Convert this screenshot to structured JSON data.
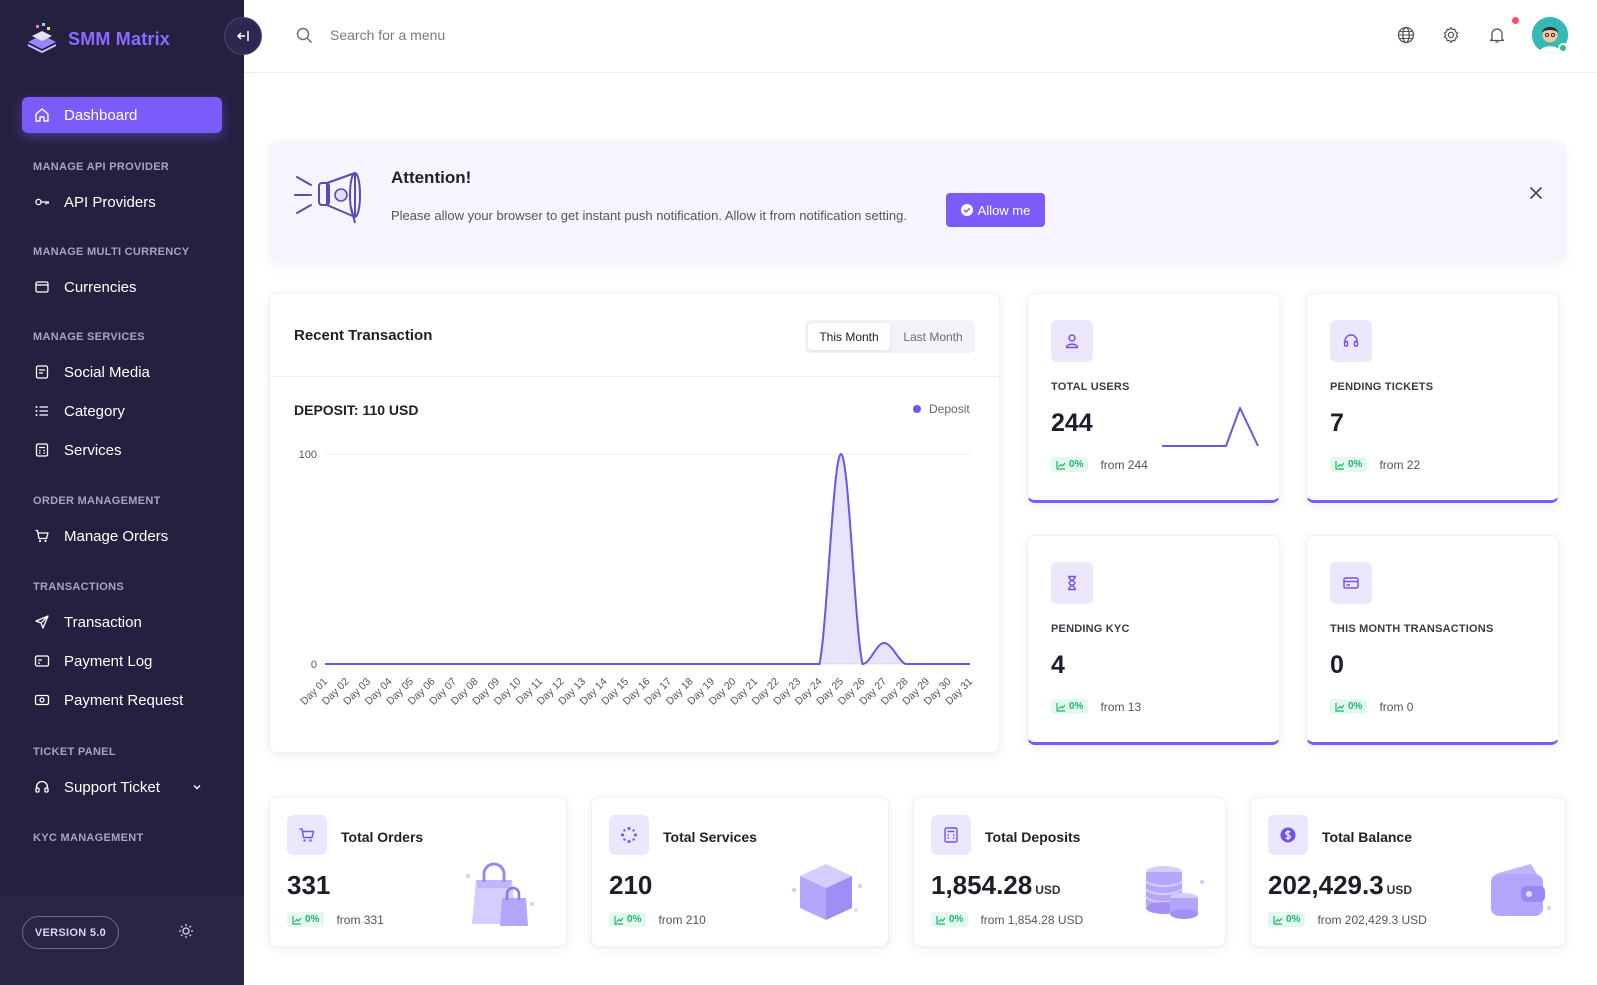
{
  "brand": {
    "name": "SMM Matrix"
  },
  "sidebar": {
    "dashboard": "Dashboard",
    "sections": {
      "api": "MANAGE API PROVIDER",
      "currency": "MANAGE MULTI CURRENCY",
      "services": "MANAGE SERVICES",
      "orders": "ORDER MANAGEMENT",
      "transactions": "TRANSACTIONS",
      "ticket": "TICKET PANEL",
      "kyc": "KYC MANAGEMENT"
    },
    "items": {
      "api_providers": "API Providers",
      "currencies": "Currencies",
      "social_media": "Social Media",
      "category": "Category",
      "services": "Services",
      "manage_orders": "Manage Orders",
      "transaction": "Transaction",
      "payment_log": "Payment Log",
      "payment_request": "Payment Request",
      "support_ticket": "Support Ticket"
    },
    "version": "VERSION 5.0"
  },
  "topbar": {
    "search_placeholder": "Search for a menu"
  },
  "banner": {
    "title": "Attention!",
    "message": "Please allow your browser to get instant push notification. Allow it from notification setting.",
    "button": "Allow me"
  },
  "recent_transaction": {
    "title": "Recent Transaction",
    "tabs": {
      "this_month": "This Month",
      "last_month": "Last Month"
    },
    "deposit_label": "DEPOSIT: 110 USD",
    "legend": "Deposit"
  },
  "chart_data": {
    "type": "area",
    "x": [
      "Day 01",
      "Day 02",
      "Day 03",
      "Day 04",
      "Day 05",
      "Day 06",
      "Day 07",
      "Day 08",
      "Day 09",
      "Day 10",
      "Day 11",
      "Day 12",
      "Day 13",
      "Day 14",
      "Day 15",
      "Day 16",
      "Day 17",
      "Day 18",
      "Day 19",
      "Day 20",
      "Day 21",
      "Day 22",
      "Day 23",
      "Day 24",
      "Day 25",
      "Day 26",
      "Day 27",
      "Day 28",
      "Day 29",
      "Day 30",
      "Day 31"
    ],
    "series": [
      {
        "name": "Deposit",
        "values": [
          0,
          0,
          0,
          0,
          0,
          0,
          0,
          0,
          0,
          0,
          0,
          0,
          0,
          0,
          0,
          0,
          0,
          0,
          0,
          0,
          0,
          0,
          0,
          0,
          100,
          0,
          10,
          0,
          0,
          0,
          0
        ]
      }
    ],
    "ylim": [
      0,
      100
    ],
    "yticks": [
      "0",
      "100"
    ],
    "color": "#6e54e8",
    "grid": true,
    "legend_position": "top-right"
  },
  "stats": {
    "total_users": {
      "label": "TOTAL USERS",
      "value": "244",
      "pct": "0%",
      "from": "from 244"
    },
    "pending_tickets": {
      "label": "PENDING TICKETS",
      "value": "7",
      "pct": "0%",
      "from": "from 22"
    },
    "pending_kyc": {
      "label": "PENDING KYC",
      "value": "4",
      "pct": "0%",
      "from": "from 13"
    },
    "month_transactions": {
      "label": "THIS MONTH TRANSACTIONS",
      "value": "0",
      "pct": "0%",
      "from": "from 0"
    }
  },
  "bottom": {
    "orders": {
      "label": "Total Orders",
      "value": "331",
      "unit": "",
      "pct": "0%",
      "from": "from 331"
    },
    "services": {
      "label": "Total Services",
      "value": "210",
      "unit": "",
      "pct": "0%",
      "from": "from 210"
    },
    "deposits": {
      "label": "Total Deposits",
      "value": "1,854.28",
      "unit": "USD",
      "pct": "0%",
      "from": "from 1,854.28 USD"
    },
    "balance": {
      "label": "Total Balance",
      "value": "202,429.3",
      "unit": "USD",
      "pct": "0%",
      "from": "from 202,429.3 USD"
    }
  },
  "colors": {
    "accent": "#7b5cfa",
    "sidebar_bg": "#25203f",
    "success": "#25b46d"
  }
}
